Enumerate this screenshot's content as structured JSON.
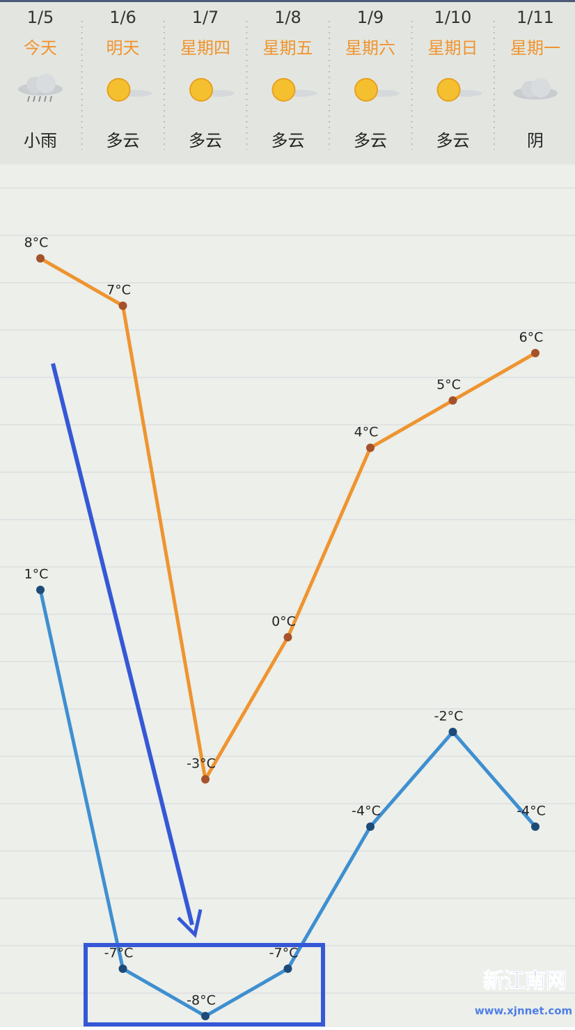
{
  "forecast": [
    {
      "date": "1/5",
      "day": "今天",
      "weather": "小雨"
    },
    {
      "date": "1/6",
      "day": "明天",
      "weather": "多云"
    },
    {
      "date": "1/7",
      "day": "星期四",
      "weather": "多云"
    },
    {
      "date": "1/8",
      "day": "星期五",
      "weather": "多云"
    },
    {
      "date": "1/9",
      "day": "星期六",
      "weather": "多云"
    },
    {
      "date": "1/10",
      "day": "星期日",
      "weather": "多云"
    },
    {
      "date": "1/11",
      "day": "星期一",
      "weather": "阴"
    }
  ],
  "chart_data": {
    "type": "line",
    "series": [
      {
        "color": "#ef9430",
        "values": [
          8,
          7,
          -3,
          0,
          4,
          5,
          6
        ],
        "value_labels": [
          "8°C",
          "7°C",
          "-3°C",
          "0°C",
          "4°C",
          "5°C",
          "6°C"
        ]
      },
      {
        "color": "#3f8fd0",
        "values": [
          1,
          -7,
          -8,
          -7,
          -4,
          -2,
          -4
        ],
        "value_labels": [
          "1°C",
          "-7°C",
          "-8°C",
          "-7°C",
          "-4°C",
          "-2°C",
          "-4°C"
        ]
      }
    ]
  },
  "watermark": {
    "name": "新江南网",
    "url": "www.xjnnet.com"
  }
}
